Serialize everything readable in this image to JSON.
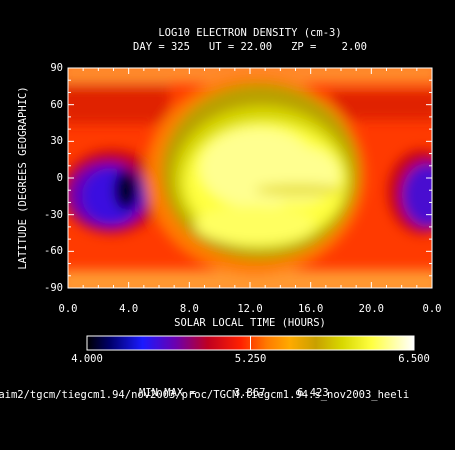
{
  "chart_data": {
    "type": "heatmap",
    "title": "LOG10 ELECTRON DENSITY (cm-3)",
    "subtitle": "DAY = 325   UT = 22.00   ZP =    2.00",
    "xlabel": "SOLAR LOCAL TIME (HOURS)",
    "ylabel": "LATITUDE (DEGREES GEOGRAPHIC)",
    "x_ticks": [
      "0.0",
      "4.0",
      "8.0",
      "12.0",
      "16.0",
      "20.0",
      "0.0"
    ],
    "y_ticks": [
      "90",
      "60",
      "30",
      "0",
      "-30",
      "-60",
      "-90"
    ],
    "x_range": [
      0,
      24
    ],
    "y_range": [
      -90,
      90
    ],
    "colorbar": {
      "min": 4.0,
      "max": 6.5,
      "labels": [
        "4.000",
        "5.250",
        "6.500"
      ]
    },
    "features": [
      {
        "lt": 12.5,
        "lat": 5,
        "value": 6.42,
        "kind": "dayside maximum"
      },
      {
        "lt": 3.6,
        "lat": -8,
        "value": 3.87,
        "kind": "nightside minimum"
      },
      {
        "lt": 23.5,
        "lat": -5,
        "value": 4.4,
        "kind": "nightside low"
      }
    ],
    "minmax_label": "MIN,MAX =",
    "min_value": "3.867,",
    "max_value": "6.423",
    "source_path": "/aim2/tgcm/tiegcm1.94/nov2003/proc/TGCM.tiegcm1.94.s_nov2003_heeli"
  },
  "colors": {
    "background": "#000000",
    "axes": "#ffffff"
  }
}
